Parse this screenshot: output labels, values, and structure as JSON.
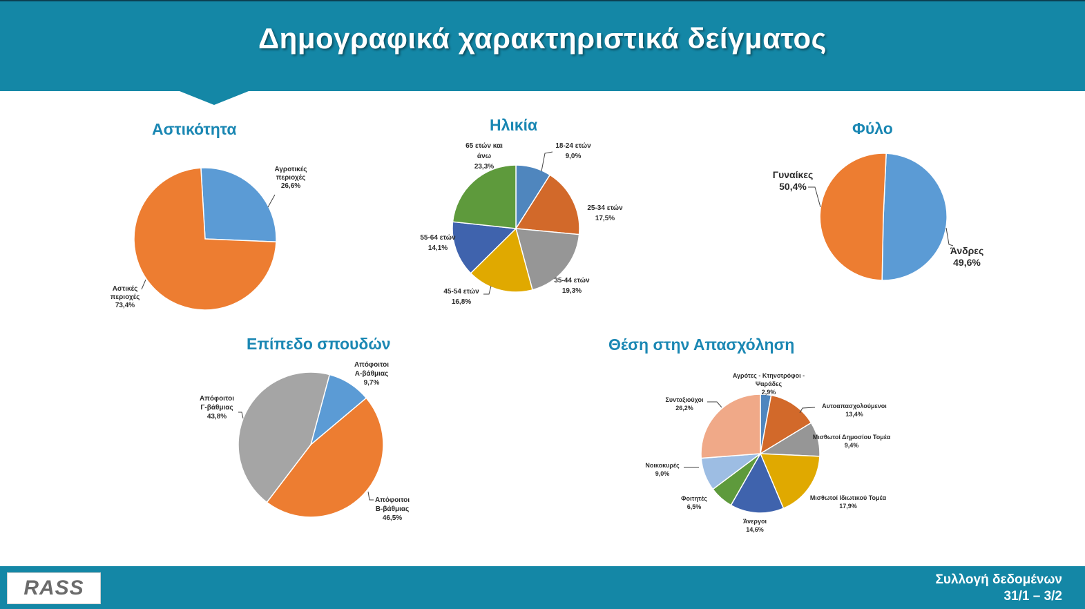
{
  "header": {
    "title": "Δημογραφικά χαρακτηριστικά δείγματος"
  },
  "footer": {
    "logo_text": "RASS",
    "line1": "Συλλογή δεδομένων",
    "line2": "31/1 – 3/2"
  },
  "colors": {
    "header_bg": "#1487a6",
    "title_color": "#1a87b3"
  },
  "chart_data": [
    {
      "id": "urbanity",
      "type": "pie",
      "title": "Αστικότητα",
      "slices": [
        {
          "label": [
            "Αγροτικές",
            "περιοχές"
          ],
          "value": 26.6,
          "value_label": "26,6%",
          "color": "#5b9bd5"
        },
        {
          "label": [
            "Αστικές",
            "περιοχές"
          ],
          "value": 73.4,
          "value_label": "73,4%",
          "color": "#ed7d31"
        }
      ]
    },
    {
      "id": "age",
      "type": "pie",
      "title": "Ηλικία",
      "slices": [
        {
          "label": [
            "18-24 ετών"
          ],
          "value": 9.0,
          "value_label": "9,0%",
          "color": "#4f86be"
        },
        {
          "label": [
            "25-34 ετών"
          ],
          "value": 17.5,
          "value_label": "17,5%",
          "color": "#d2692a"
        },
        {
          "label": [
            "35-44 ετών"
          ],
          "value": 19.3,
          "value_label": "19,3%",
          "color": "#969696"
        },
        {
          "label": [
            "45-54 ετών"
          ],
          "value": 16.8,
          "value_label": "16,8%",
          "color": "#e0a900"
        },
        {
          "label": [
            "55-64 ετών"
          ],
          "value": 14.1,
          "value_label": "14,1%",
          "color": "#3f63ad"
        },
        {
          "label": [
            "65 ετών και",
            "άνω"
          ],
          "value": 23.3,
          "value_label": "23,3%",
          "color": "#5e9a3c"
        }
      ]
    },
    {
      "id": "gender",
      "type": "pie",
      "title": "Φύλο",
      "slices": [
        {
          "label": [
            "Άνδρες"
          ],
          "value": 49.6,
          "value_label": "49,6%",
          "color": "#5b9bd5"
        },
        {
          "label": [
            "Γυναίκες"
          ],
          "value": 50.4,
          "value_label": "50,4%",
          "color": "#ed7d31"
        }
      ]
    },
    {
      "id": "education",
      "type": "pie",
      "title": "Επίπεδο σπουδών",
      "slices": [
        {
          "label": [
            "Απόφοιτοι",
            "Α-βάθμιας"
          ],
          "value": 9.7,
          "value_label": "9,7%",
          "color": "#5b9bd5"
        },
        {
          "label": [
            "Απόφοιτοι",
            "Β-βάθμιας"
          ],
          "value": 46.5,
          "value_label": "46,5%",
          "color": "#ed7d31"
        },
        {
          "label": [
            "Απόφοιτοι",
            "Γ-βάθμιας"
          ],
          "value": 43.8,
          "value_label": "43,8%",
          "color": "#a5a5a5"
        }
      ]
    },
    {
      "id": "employment",
      "type": "pie",
      "title": "Θέση στην Απασχόληση",
      "slices": [
        {
          "label": [
            "Αγρότες - Κτηνοτρόφοι -",
            "Ψαράδες"
          ],
          "value": 2.9,
          "value_label": "2,9%",
          "color": "#4f86be"
        },
        {
          "label": [
            "Αυτοαπασχολούμενοι"
          ],
          "value": 13.4,
          "value_label": "13,4%",
          "color": "#d2692a"
        },
        {
          "label": [
            "Μισθωτοί Δημοσίου Τομέα"
          ],
          "value": 9.4,
          "value_label": "9,4%",
          "color": "#969696"
        },
        {
          "label": [
            "Μισθωτοί Ιδιωτικού Τομέα"
          ],
          "value": 17.9,
          "value_label": "17,9%",
          "color": "#e0a900"
        },
        {
          "label": [
            "Άνεργοι"
          ],
          "value": 14.6,
          "value_label": "14,6%",
          "color": "#3f63ad"
        },
        {
          "label": [
            "Φοιτητές"
          ],
          "value": 6.5,
          "value_label": "6,5%",
          "color": "#5e9a3c"
        },
        {
          "label": [
            "Νοικοκυρές"
          ],
          "value": 9.0,
          "value_label": "9,0%",
          "color": "#9dbde3"
        },
        {
          "label": [
            "Συνταξιούχοι"
          ],
          "value": 26.2,
          "value_label": "26,2%",
          "color": "#f0a988"
        }
      ]
    }
  ]
}
